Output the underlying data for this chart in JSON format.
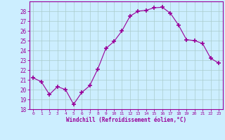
{
  "x": [
    0,
    1,
    2,
    3,
    4,
    5,
    6,
    7,
    8,
    9,
    10,
    11,
    12,
    13,
    14,
    15,
    16,
    17,
    18,
    19,
    20,
    21,
    22,
    23
  ],
  "y": [
    21.2,
    20.8,
    19.5,
    20.3,
    20.0,
    18.5,
    19.7,
    20.4,
    22.1,
    24.2,
    24.9,
    26.0,
    27.5,
    28.0,
    28.1,
    28.35,
    28.4,
    27.8,
    26.6,
    25.1,
    25.0,
    24.7,
    23.2,
    22.7
  ],
  "xlim": [
    -0.5,
    23.5
  ],
  "ylim": [
    18,
    29
  ],
  "yticks": [
    18,
    19,
    20,
    21,
    22,
    23,
    24,
    25,
    26,
    27,
    28
  ],
  "xticks": [
    0,
    1,
    2,
    3,
    4,
    5,
    6,
    7,
    8,
    9,
    10,
    11,
    12,
    13,
    14,
    15,
    16,
    17,
    18,
    19,
    20,
    21,
    22,
    23
  ],
  "xlabel": "Windchill (Refroidissement éolien,°C)",
  "line_color": "#990099",
  "marker": "+",
  "marker_size": 5,
  "bg_color": "#cceeff",
  "grid_color": "#aacccc",
  "spine_color": "#990099",
  "tick_color": "#990099",
  "label_color": "#990099"
}
